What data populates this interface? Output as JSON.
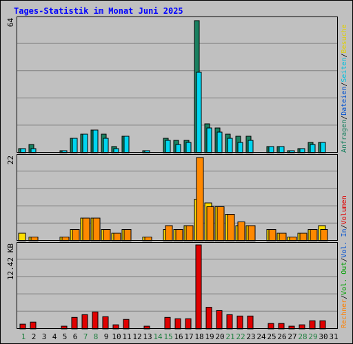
{
  "chart_data": {
    "type": "bar",
    "title": "Tages-Statistik im Monat Juni 2025",
    "categories": [
      "1",
      "2",
      "3",
      "4",
      "5",
      "6",
      "7",
      "8",
      "9",
      "10",
      "11",
      "12",
      "13",
      "14",
      "15",
      "16",
      "17",
      "18",
      "19",
      "20",
      "21",
      "22",
      "23",
      "24",
      "25",
      "26",
      "27",
      "28",
      "29",
      "30",
      "31"
    ],
    "weekend_days": [
      "1",
      "7",
      "8",
      "14",
      "15",
      "21",
      "22",
      "28",
      "29"
    ],
    "panels": [
      {
        "id": "hits",
        "max_label": "64",
        "ylim": [
          0,
          64
        ],
        "grid": true,
        "series": [
          {
            "name": "Anfragen",
            "color": "#1a8060",
            "values": [
              2,
              4,
              0,
              0,
              1,
              7,
              9,
              11,
              9,
              3,
              8,
              0,
              1,
              0,
              7,
              6,
              6,
              64,
              14,
              12,
              9,
              8,
              8,
              0,
              3,
              3,
              1,
              2,
              5,
              5,
              0
            ]
          },
          {
            "name": "Dateien",
            "color": "#00d5f0",
            "values": [
              2,
              2,
              0,
              0,
              1,
              7,
              9,
              11,
              7,
              2,
              8,
              0,
              1,
              0,
              6,
              4,
              5,
              39,
              12,
              10,
              7,
              5,
              6,
              0,
              3,
              3,
              1,
              2,
              4,
              5,
              0
            ]
          },
          {
            "name": "Seiten",
            "color": "#00d5f0",
            "values": [
              0,
              0,
              0,
              0,
              0,
              0,
              0,
              0,
              0,
              0,
              0,
              0,
              0,
              0,
              0,
              0,
              0,
              0,
              0,
              0,
              0,
              0,
              0,
              0,
              0,
              0,
              0,
              0,
              0,
              0,
              0
            ]
          }
        ]
      },
      {
        "id": "visits",
        "max_label": "22",
        "ylim": [
          0,
          22
        ],
        "grid": true,
        "series": [
          {
            "name": "Besuche",
            "color": "#ffdd00",
            "values": [
              2,
              1,
              0,
              0,
              1,
              3,
              6,
              6,
              3,
              2,
              3,
              0,
              1,
              0,
              3,
              3,
              4,
              11,
              10,
              9,
              7,
              4,
              4,
              0,
              3,
              2,
              1,
              2,
              3,
              4,
              0
            ]
          },
          {
            "name": "Rechner",
            "color": "#ff8800",
            "values": [
              0,
              1,
              0,
              0,
              1,
              3,
              6,
              6,
              3,
              2,
              3,
              0,
              1,
              0,
              4,
              3,
              4,
              22,
              9,
              9,
              7,
              5,
              4,
              0,
              3,
              2,
              1,
              2,
              3,
              3,
              0
            ]
          }
        ]
      },
      {
        "id": "volume",
        "max_label": "12.42 KB",
        "ylim": [
          0,
          12.42
        ],
        "grid": true,
        "series": [
          {
            "name": "Volumen",
            "color": "#e00000",
            "values": [
              0.7,
              1.0,
              0,
              0,
              0.4,
              1.7,
              2.1,
              2.5,
              1.8,
              0.6,
              1.4,
              0,
              0.4,
              0,
              1.7,
              1.5,
              1.5,
              12.42,
              3.2,
              2.7,
              2.1,
              1.9,
              1.9,
              0,
              0.8,
              0.8,
              0.4,
              0.6,
              1.2,
              1.2,
              0
            ]
          }
        ]
      }
    ],
    "legend": {
      "top": [
        "Anfragen",
        "Dateien",
        "Seiten",
        "Besuche"
      ],
      "top_colors": [
        "#1a8060",
        "#0050d0",
        "#00c0e0",
        "#e0d000"
      ],
      "bottom": [
        "Rechner",
        "Vol. Out",
        "Vol. In",
        "Volumen"
      ],
      "bottom_colors": [
        "#ff8000",
        "#00a000",
        "#0050d0",
        "#e00000"
      ],
      "separator": "/"
    },
    "colors": {
      "title": "#0000ff",
      "frame": "#000000",
      "grid": "#808080",
      "tick_weekday": "#000000",
      "tick_weekend": "#208040"
    }
  }
}
